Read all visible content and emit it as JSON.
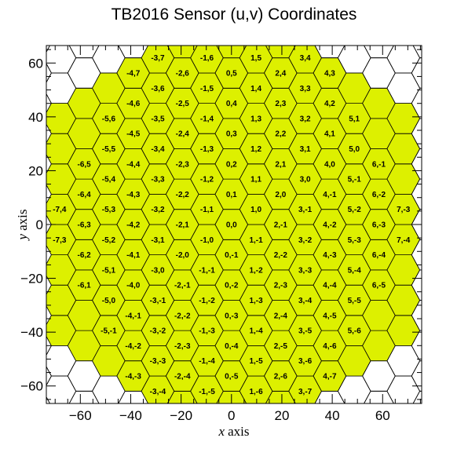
{
  "chart_data": {
    "type": "heatmap",
    "title": "TB2016 Sensor (u,v) Coordinates",
    "xlabel_var": "x",
    "xlabel_word": "axis",
    "ylabel_var": "y",
    "ylabel_word": "axis",
    "xlim": [
      -73.5,
      75.5
    ],
    "ylim": [
      -66.5,
      66.5
    ],
    "xticks": [
      -60,
      -40,
      -20,
      0,
      20,
      40,
      60
    ],
    "yticks": [
      -60,
      -40,
      -20,
      0,
      20,
      40,
      60
    ],
    "cell_size_units": 6.5,
    "sensor_u_range": [
      -7,
      7
    ],
    "sensor_v_range": [
      -7,
      7
    ],
    "sensor_max_hex_distance": 7,
    "sensor_fill_color": "#ddf000",
    "outline_color": "#000000",
    "visible_labels": [
      "-7,3",
      "-6,1",
      "-5,-1",
      "-4,-3",
      "-7,4",
      "-6,2",
      "-5,0",
      "-4,-2",
      "-3,-4",
      "-6,3",
      "-5,1",
      "-4,-1",
      "-3,-3",
      "-6,4",
      "-5,2",
      "-4,0",
      "-3,-2",
      "-2,-4",
      "-6,5",
      "-5,3",
      "-4,1",
      "-3,-1",
      "-2,-3",
      "-1,-5",
      "-5,4",
      "-4,2",
      "-3,0",
      "-2,-2",
      "-1,-4",
      "-5,5",
      "-4,3",
      "-3,1",
      "-2,-1",
      "-1,-3",
      "0,-5",
      "-5,6",
      "-4,4",
      "-3,2",
      "-2,0",
      "-1,-2",
      "0,-4",
      "1,-6",
      "-4,5",
      "-3,3",
      "-2,1",
      "-1,-1",
      "0,-3",
      "1,-5",
      "-4,6",
      "-3,4",
      "-2,2",
      "-1,0",
      "0,-2",
      "1,-4",
      "2,-6",
      "-4,7",
      "-3,5",
      "-2,3",
      "-1,1",
      "0,-1",
      "1,-3",
      "2,-5",
      "3,-7",
      "-3,6",
      "-2,4",
      "-1,2",
      "0,0",
      "1,-2",
      "2,-4",
      "3,-6",
      "-3,7",
      "-2,5",
      "-1,3",
      "0,1",
      "1,-1",
      "2,-3",
      "3,-5",
      "4,-7",
      "-2,6",
      "-1,4",
      "0,2",
      "1,0",
      "2,-2",
      "3,-4",
      "4,-6",
      "-1,5",
      "0,3",
      "1,1",
      "2,-1",
      "3,-3",
      "4,-5",
      "-1,6",
      "0,4",
      "1,2",
      "2,0",
      "3,-2",
      "4,-4",
      "5,-6",
      "0,5",
      "1,3",
      "2,1",
      "3,-1",
      "4,-3",
      "5,-5",
      "1,4",
      "2,2",
      "3,0",
      "4,-2",
      "5,-4",
      "1,5",
      "2,3",
      "3,1",
      "4,-1",
      "5,-3",
      "6,-5",
      "2,4",
      "3,2",
      "4,0",
      "5,-2",
      "6,-4",
      "3,3",
      "4,1",
      "5,-1",
      "6,-3",
      "3,4",
      "4,2",
      "5,0",
      "6,-2",
      "7,-4",
      "4,3",
      "5,1",
      "6,-1",
      "7,-3"
    ]
  }
}
